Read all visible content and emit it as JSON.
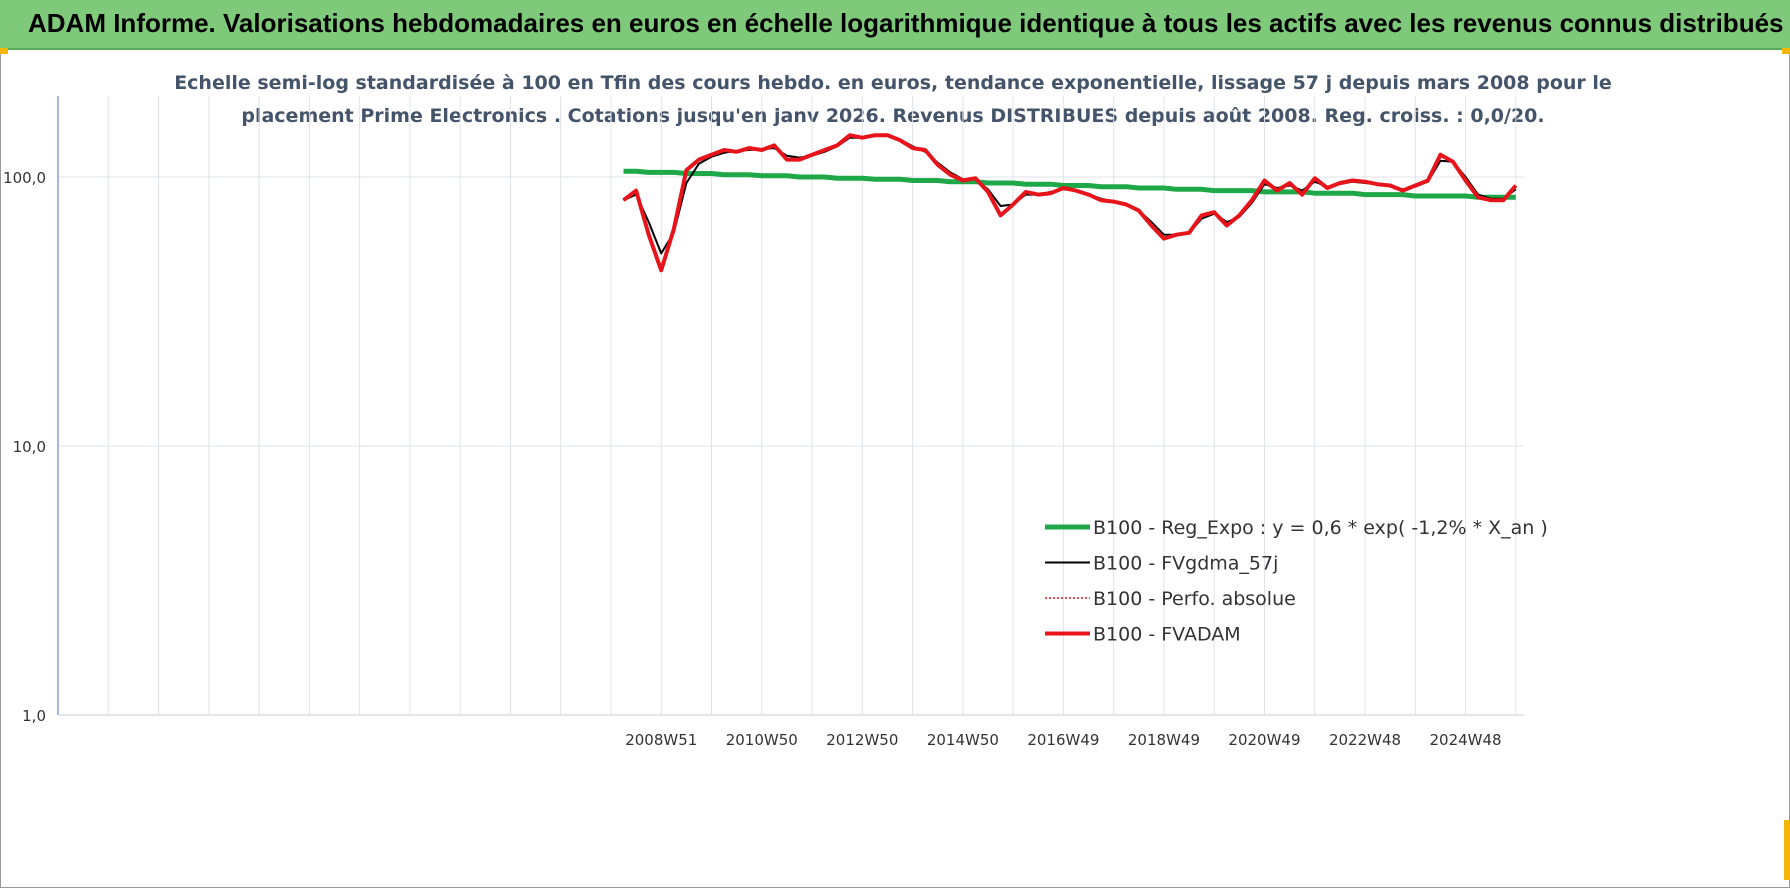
{
  "banner": "ADAM Informe. Valorisations hebdomadaires en euros en échelle logarithmique identique à tous les actifs avec les revenus connus distribués",
  "chart_data": {
    "type": "line",
    "title": [
      "Echelle semi-log standardisée à 100 en Tfin des cours hebdo. en euros, tendance exponentielle, lissage 57 j depuis mars 2008 pour le",
      "placement Prime Electronics . Cotations jusqu'en janv 2026. Revenus DISTRIBUES depuis août 2008. Reg. croiss. : 0,0/20."
    ],
    "log_scale": true,
    "grid": true,
    "legend": "lower right",
    "ylim": [
      1,
      200
    ],
    "yticks": [
      {
        "value": 1,
        "label": "1,0"
      },
      {
        "value": 10,
        "label": "10,0"
      },
      {
        "value": 100,
        "label": "100,0"
      }
    ],
    "categories": [
      null,
      null,
      null,
      null,
      null,
      null,
      null,
      null,
      null,
      null,
      null,
      null,
      null,
      null,
      null,
      null,
      null,
      null,
      null,
      null,
      null,
      null,
      null,
      null,
      null,
      null,
      null,
      null,
      null,
      null,
      null,
      null,
      null,
      null,
      null,
      null,
      null,
      null,
      null,
      null,
      null,
      null,
      null,
      null,
      null,
      null,
      null,
      null,
      "2008W51",
      null,
      null,
      null,
      null,
      null,
      null,
      null,
      "2010W50",
      null,
      null,
      null,
      null,
      null,
      null,
      null,
      "2012W50",
      null,
      null,
      null,
      null,
      null,
      null,
      null,
      "2014W50",
      null,
      null,
      null,
      null,
      null,
      null,
      null,
      "2016W49",
      null,
      null,
      null,
      null,
      null,
      null,
      null,
      "2018W49",
      null,
      null,
      null,
      null,
      null,
      null,
      null,
      "2020W49",
      null,
      null,
      null,
      null,
      null,
      null,
      null,
      "2022W48",
      null,
      null,
      null,
      null,
      null,
      null,
      null,
      "2024W48",
      null,
      null,
      null,
      null
    ],
    "series": [
      {
        "name": "B100 - Reg_Expo : y = 0,6 * exp( -1,2% *  X_an )",
        "color": "#1fa847",
        "width": 5,
        "values": [
          null,
          null,
          null,
          null,
          null,
          null,
          null,
          null,
          null,
          null,
          null,
          null,
          null,
          null,
          null,
          null,
          null,
          null,
          null,
          null,
          null,
          null,
          null,
          null,
          null,
          null,
          null,
          null,
          null,
          null,
          null,
          null,
          null,
          null,
          null,
          null,
          null,
          null,
          null,
          null,
          null,
          null,
          null,
          null,
          null,
          105,
          105,
          104,
          104,
          104,
          103,
          103,
          103,
          102,
          102,
          102,
          101,
          101,
          101,
          100,
          100,
          100,
          99,
          99,
          99,
          98,
          98,
          98,
          97,
          97,
          97,
          96,
          96,
          96,
          95,
          95,
          95,
          94,
          94,
          94,
          93,
          93,
          93,
          92,
          92,
          92,
          91,
          91,
          91,
          90,
          90,
          90,
          89,
          89,
          89,
          89,
          88,
          88,
          88,
          88,
          87,
          87,
          87,
          87,
          86,
          86,
          86,
          86,
          85,
          85,
          85,
          85,
          85,
          84,
          84,
          84,
          84
        ]
      },
      {
        "name": "B100 - FVgdma_57j",
        "color": "#000000",
        "width": 2,
        "values": [
          null,
          null,
          null,
          null,
          null,
          null,
          null,
          null,
          null,
          null,
          null,
          null,
          null,
          null,
          null,
          null,
          null,
          null,
          null,
          null,
          null,
          null,
          null,
          null,
          null,
          null,
          null,
          null,
          null,
          null,
          null,
          null,
          null,
          null,
          null,
          null,
          null,
          null,
          null,
          null,
          null,
          null,
          null,
          null,
          null,
          82,
          86,
          68,
          52,
          62,
          95,
          112,
          119,
          123,
          125,
          126,
          127,
          128,
          120,
          118,
          120,
          124,
          130,
          140,
          140,
          142,
          142,
          138,
          130,
          124,
          113,
          104,
          98,
          98,
          90,
          78,
          79,
          86,
          86,
          88,
          90,
          89,
          86,
          83,
          81,
          79,
          75,
          68,
          61,
          61,
          62,
          70,
          73,
          68,
          71,
          80,
          94,
          91,
          93,
          89,
          96,
          92,
          94,
          96,
          95,
          94,
          93,
          90,
          92,
          96,
          115,
          114,
          100,
          86,
          83,
          83,
          90
        ]
      },
      {
        "name": "B100 - Perfo. absolue",
        "color": "#e8141b",
        "width": 1.5,
        "style": "dotted",
        "values": [
          null,
          null,
          null,
          null,
          null,
          null,
          null,
          null,
          null,
          null,
          null,
          null,
          null,
          null,
          null,
          null,
          null,
          null,
          null,
          null,
          null,
          null,
          null,
          null,
          null,
          null,
          null,
          null,
          null,
          null,
          null,
          null,
          null,
          null,
          null,
          null,
          null,
          null,
          null,
          null,
          null,
          null,
          null,
          null,
          null,
          82,
          89,
          61,
          45,
          64,
          106,
          116,
          121,
          126,
          124,
          128,
          126,
          131,
          116,
          116,
          121,
          126,
          131,
          143,
          140,
          143,
          143,
          137,
          128,
          126,
          111,
          102,
          97,
          99,
          88,
          72,
          79,
          88,
          86,
          87,
          91,
          89,
          86,
          82,
          81,
          79,
          75,
          66,
          59,
          61,
          62,
          72,
          74,
          66,
          72,
          82,
          97,
          89,
          95,
          86,
          99,
          91,
          95,
          97,
          96,
          94,
          93,
          89,
          93,
          97,
          121,
          114,
          97,
          84,
          82,
          82,
          93
        ]
      },
      {
        "name": "B100 - FVADAM",
        "color": "#e8141b",
        "width": 4,
        "values": [
          null,
          null,
          null,
          null,
          null,
          null,
          null,
          null,
          null,
          null,
          null,
          null,
          null,
          null,
          null,
          null,
          null,
          null,
          null,
          null,
          null,
          null,
          null,
          null,
          null,
          null,
          null,
          null,
          null,
          null,
          null,
          null,
          null,
          null,
          null,
          null,
          null,
          null,
          null,
          null,
          null,
          null,
          null,
          null,
          null,
          82,
          89,
          61,
          45,
          64,
          106,
          116,
          121,
          126,
          124,
          128,
          126,
          131,
          116,
          116,
          121,
          126,
          131,
          143,
          140,
          143,
          143,
          137,
          128,
          126,
          111,
          102,
          97,
          99,
          88,
          72,
          79,
          88,
          86,
          87,
          91,
          89,
          86,
          82,
          81,
          79,
          75,
          66,
          59,
          61,
          62,
          72,
          74,
          66,
          72,
          82,
          97,
          89,
          95,
          86,
          99,
          91,
          95,
          97,
          96,
          94,
          93,
          89,
          93,
          97,
          121,
          114,
          97,
          84,
          82,
          82,
          93
        ]
      }
    ]
  }
}
